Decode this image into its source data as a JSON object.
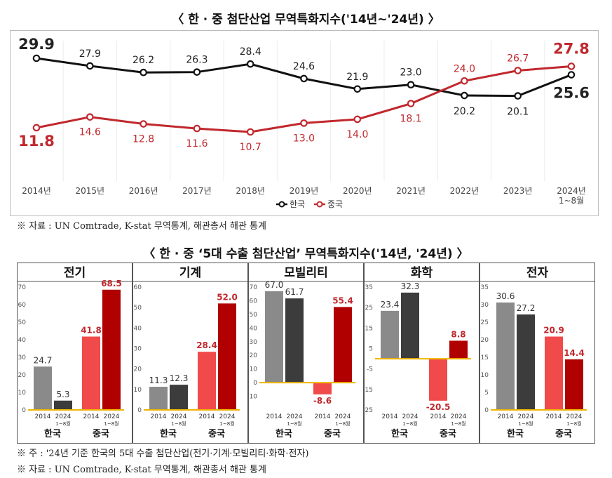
{
  "top_title": "〈 한 · 중 첨단산업 무역특화지수('14년~'24년) 〉",
  "top_note": "※ 자료 : UN Comtrade, K-stat 무역통계, 해관총서 해관 통계",
  "bottom_title": "〈 한 · 중 ‘5대 수출 첨단산업’ 무역특화지수('14년, '24년) 〉",
  "bottom_note1": "※ 주 : '24년 기준 한국의 5대 수출 첨단산업(전기·기계·모빌리티·화학·전자)",
  "bottom_note2": "※ 자료 : UN Comtrade, K-stat 무역통계, 해관총서 해관 통계",
  "colors": {
    "korea": "#111111",
    "china": "#c0282d",
    "k2014": "#8a8a8a",
    "k2024": "#3c3c3c",
    "c2014": "#f04a4a",
    "c2024": "#b00000",
    "zero_line": "#f0b400"
  },
  "chart_data": [
    {
      "type": "line",
      "x": [
        "2014년",
        "2015년",
        "2016년",
        "2017년",
        "2018년",
        "2019년",
        "2020년",
        "2021년",
        "2022년",
        "2023년",
        "2024년"
      ],
      "x_sub": [
        "",
        "",
        "",
        "",
        "",
        "",
        "",
        "",
        "",
        "",
        "1~8월"
      ],
      "series": [
        {
          "name": "한국",
          "values": [
            29.9,
            27.9,
            26.2,
            26.3,
            28.4,
            24.6,
            21.9,
            23.0,
            20.2,
            20.1,
            25.6
          ]
        },
        {
          "name": "중국",
          "values": [
            11.8,
            14.6,
            12.8,
            11.6,
            10.7,
            13.0,
            14.0,
            18.1,
            24.0,
            26.7,
            27.8
          ]
        }
      ],
      "legend": "bottom-center"
    },
    {
      "type": "bar",
      "panels": [
        {
          "title": "전기",
          "ylim": [
            0,
            70
          ],
          "yticks": [
            0,
            10,
            20,
            30,
            40,
            50,
            60,
            70
          ],
          "korea": [
            24.7,
            5.3
          ],
          "china": [
            41.8,
            68.5
          ]
        },
        {
          "title": "기계",
          "ylim": [
            0,
            60
          ],
          "yticks": [
            0,
            10,
            20,
            30,
            40,
            50,
            60
          ],
          "korea": [
            11.3,
            12.3
          ],
          "china": [
            28.4,
            52.0
          ]
        },
        {
          "title": "모빌리티",
          "ylim": [
            -20,
            70
          ],
          "yticks": [
            -10,
            0,
            10,
            20,
            30,
            40,
            50,
            60,
            70
          ],
          "korea": [
            67.0,
            61.7
          ],
          "china": [
            -8.6,
            55.4
          ]
        },
        {
          "title": "화학",
          "ylim": [
            -25,
            35
          ],
          "yticks": [
            -25,
            -15,
            -5,
            5,
            15,
            25,
            35
          ],
          "korea": [
            23.4,
            32.3
          ],
          "china": [
            -20.5,
            8.8
          ]
        },
        {
          "title": "전자",
          "ylim": [
            0,
            35
          ],
          "yticks": [
            0,
            5,
            10,
            15,
            20,
            25,
            30,
            35
          ],
          "korea": [
            30.6,
            27.2
          ],
          "china": [
            20.9,
            14.4
          ]
        }
      ],
      "bar_years": [
        "2014",
        "2024"
      ],
      "bar_years_sub": [
        "",
        "1~8월"
      ],
      "groups": [
        "한국",
        "중국"
      ]
    }
  ]
}
